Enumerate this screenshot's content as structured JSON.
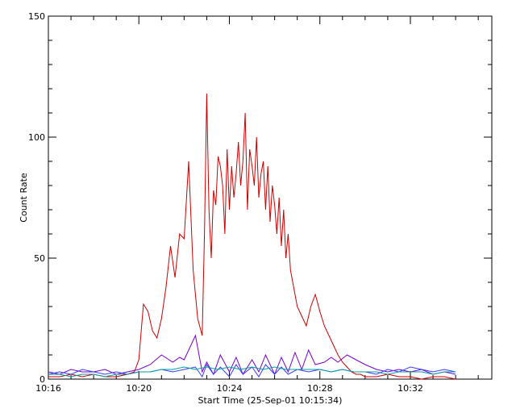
{
  "chart_data": {
    "type": "line",
    "title": "",
    "xlabel": "Start Time (25-Sep-01 10:15:34)",
    "ylabel": "Count Rate",
    "x_unit": "minutes after 10:16",
    "xlim": [
      0,
      19.6
    ],
    "ylim": [
      0,
      150
    ],
    "x_ticks": [
      {
        "value": 0,
        "label": "10:16"
      },
      {
        "value": 4,
        "label": "10:20"
      },
      {
        "value": 8,
        "label": "10:24"
      },
      {
        "value": 12,
        "label": "10:28"
      },
      {
        "value": 16,
        "label": "10:32"
      }
    ],
    "y_ticks": [
      {
        "value": 0,
        "label": "0"
      },
      {
        "value": 50,
        "label": "50"
      },
      {
        "value": 100,
        "label": "100"
      },
      {
        "value": 150,
        "label": "150"
      }
    ],
    "grid": false,
    "legend": "none",
    "colors": {
      "series_red": "#cc0000",
      "series_purple": "#7a00cc",
      "series_blue": "#3a3aff",
      "series_teal": "#00a0a0"
    },
    "series": [
      {
        "color_key": "series_red",
        "x": [
          0.0,
          0.5,
          1.0,
          1.5,
          2.0,
          2.5,
          3.0,
          3.5,
          3.8,
          4.0,
          4.2,
          4.4,
          4.6,
          4.8,
          5.0,
          5.2,
          5.4,
          5.6,
          5.8,
          6.0,
          6.2,
          6.4,
          6.6,
          6.8,
          6.9,
          7.0,
          7.1,
          7.2,
          7.3,
          7.4,
          7.5,
          7.6,
          7.7,
          7.8,
          7.9,
          8.0,
          8.1,
          8.2,
          8.3,
          8.4,
          8.5,
          8.6,
          8.7,
          8.8,
          8.9,
          9.0,
          9.1,
          9.2,
          9.3,
          9.4,
          9.5,
          9.6,
          9.7,
          9.8,
          9.9,
          10.0,
          10.1,
          10.2,
          10.3,
          10.4,
          10.5,
          10.6,
          10.7,
          10.8,
          10.9,
          11.0,
          11.2,
          11.4,
          11.6,
          11.8,
          12.0,
          12.2,
          12.4,
          12.6,
          12.8,
          13.0,
          13.2,
          13.4,
          13.6,
          13.8,
          14.0,
          14.5,
          15.0,
          15.5,
          16.0,
          16.5,
          17.0,
          17.5,
          18.0
        ],
        "y": [
          1,
          1,
          2,
          1,
          2,
          1,
          1,
          2,
          3,
          8,
          31,
          28,
          20,
          17,
          25,
          38,
          55,
          42,
          60,
          58,
          90,
          45,
          25,
          18,
          60,
          118,
          70,
          50,
          78,
          72,
          92,
          88,
          80,
          60,
          95,
          70,
          88,
          75,
          85,
          98,
          80,
          90,
          110,
          70,
          95,
          88,
          80,
          100,
          75,
          85,
          90,
          70,
          88,
          65,
          80,
          72,
          60,
          75,
          55,
          70,
          50,
          60,
          45,
          40,
          35,
          30,
          26,
          22,
          30,
          35,
          28,
          22,
          18,
          14,
          10,
          7,
          5,
          3,
          2,
          2,
          1,
          1,
          2,
          1,
          1,
          0,
          1,
          1,
          0
        ]
      },
      {
        "color_key": "series_purple",
        "x": [
          0.0,
          0.5,
          1.0,
          1.5,
          2.0,
          2.5,
          3.0,
          3.5,
          4.0,
          4.5,
          5.0,
          5.5,
          5.8,
          6.0,
          6.2,
          6.5,
          6.8,
          7.0,
          7.3,
          7.6,
          8.0,
          8.3,
          8.6,
          9.0,
          9.3,
          9.6,
          10.0,
          10.3,
          10.6,
          10.9,
          11.2,
          11.5,
          11.8,
          12.2,
          12.5,
          12.8,
          13.2,
          13.6,
          14.0,
          14.5,
          15.0,
          15.5,
          16.0,
          16.5,
          17.0,
          17.5,
          18.0
        ],
        "y": [
          3,
          2,
          4,
          3,
          3,
          4,
          2,
          3,
          4,
          6,
          10,
          7,
          9,
          8,
          12,
          18,
          3,
          7,
          2,
          10,
          3,
          9,
          2,
          8,
          3,
          10,
          2,
          9,
          3,
          11,
          4,
          12,
          6,
          7,
          9,
          7,
          10,
          8,
          6,
          4,
          3,
          4,
          3,
          4,
          2,
          3,
          2
        ]
      },
      {
        "color_key": "series_blue",
        "x": [
          0.0,
          0.5,
          1.0,
          1.5,
          2.0,
          2.5,
          3.0,
          3.5,
          4.0,
          4.5,
          5.0,
          5.5,
          6.0,
          6.5,
          6.8,
          7.0,
          7.3,
          7.6,
          8.0,
          8.3,
          8.6,
          9.0,
          9.3,
          9.6,
          10.0,
          10.3,
          10.6,
          11.0,
          11.5,
          12.0,
          12.5,
          13.0,
          13.5,
          14.0,
          14.5,
          15.0,
          15.5,
          16.0,
          16.5,
          17.0,
          17.5,
          18.0
        ],
        "y": [
          2,
          3,
          2,
          4,
          3,
          2,
          3,
          2,
          3,
          3,
          4,
          3,
          4,
          5,
          1,
          6,
          2,
          5,
          1,
          6,
          2,
          5,
          1,
          6,
          2,
          5,
          2,
          4,
          3,
          4,
          3,
          4,
          3,
          3,
          2,
          4,
          3,
          5,
          4,
          3,
          4,
          3
        ]
      },
      {
        "color_key": "series_teal",
        "x": [
          0.0,
          0.5,
          1.0,
          1.5,
          2.0,
          2.5,
          3.0,
          3.5,
          4.0,
          4.5,
          5.0,
          5.5,
          6.0,
          6.5,
          7.0,
          7.5,
          8.0,
          8.5,
          9.0,
          9.5,
          10.0,
          10.5,
          11.0,
          11.5,
          12.0,
          12.5,
          13.0,
          13.5,
          14.0,
          14.5,
          15.0,
          15.5,
          16.0,
          16.5,
          17.0,
          17.5,
          18.0
        ],
        "y": [
          2,
          2,
          1,
          2,
          2,
          1,
          2,
          2,
          3,
          3,
          4,
          4,
          5,
          4,
          5,
          4,
          5,
          4,
          5,
          4,
          5,
          4,
          4,
          4,
          4,
          3,
          4,
          3,
          3,
          3,
          2,
          3,
          3,
          3,
          2,
          3,
          3
        ]
      }
    ]
  }
}
